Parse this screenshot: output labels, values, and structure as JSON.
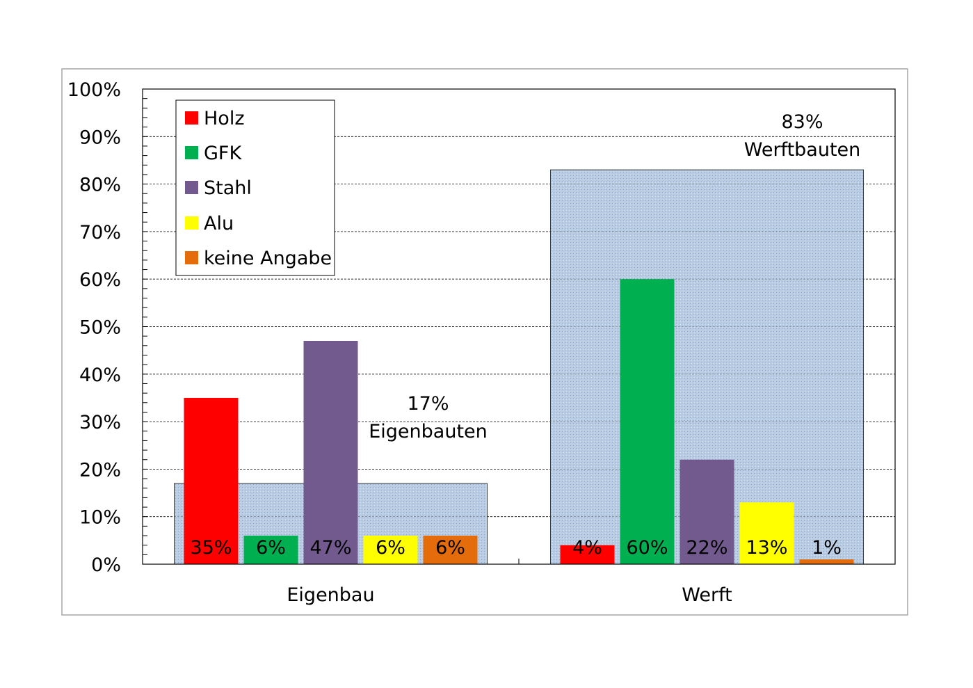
{
  "chart_data": {
    "type": "bar",
    "categories": [
      "Eigenbau",
      "Werft"
    ],
    "ylim": [
      0,
      100
    ],
    "y_ticks": [
      "0%",
      "10%",
      "20%",
      "30%",
      "40%",
      "50%",
      "60%",
      "70%",
      "80%",
      "90%",
      "100%"
    ],
    "grid": true,
    "legend_placement": "top-left",
    "background_series": {
      "name": "share",
      "values": [
        17,
        83
      ],
      "color": "#b8cce4",
      "annotations": [
        {
          "value": "17%",
          "label": "Eigenbauten"
        },
        {
          "value": "83%",
          "label": "Werftbauten"
        }
      ]
    },
    "series": [
      {
        "name": "Holz",
        "color": "#ff0000",
        "values": [
          35,
          4
        ],
        "labels": [
          "35%",
          "4%"
        ]
      },
      {
        "name": "GFK",
        "color": "#00b050",
        "values": [
          6,
          60
        ],
        "labels": [
          "6%",
          "60%"
        ]
      },
      {
        "name": "Stahl",
        "color": "#725a8f",
        "values": [
          47,
          22
        ],
        "labels": [
          "47%",
          "22%"
        ]
      },
      {
        "name": "Alu",
        "color": "#ffff00",
        "values": [
          6,
          13
        ],
        "labels": [
          "6%",
          "13%"
        ]
      },
      {
        "name": "keine Angabe",
        "color": "#e46c0a",
        "values": [
          6,
          1
        ],
        "labels": [
          "6%",
          "1%"
        ]
      }
    ]
  }
}
